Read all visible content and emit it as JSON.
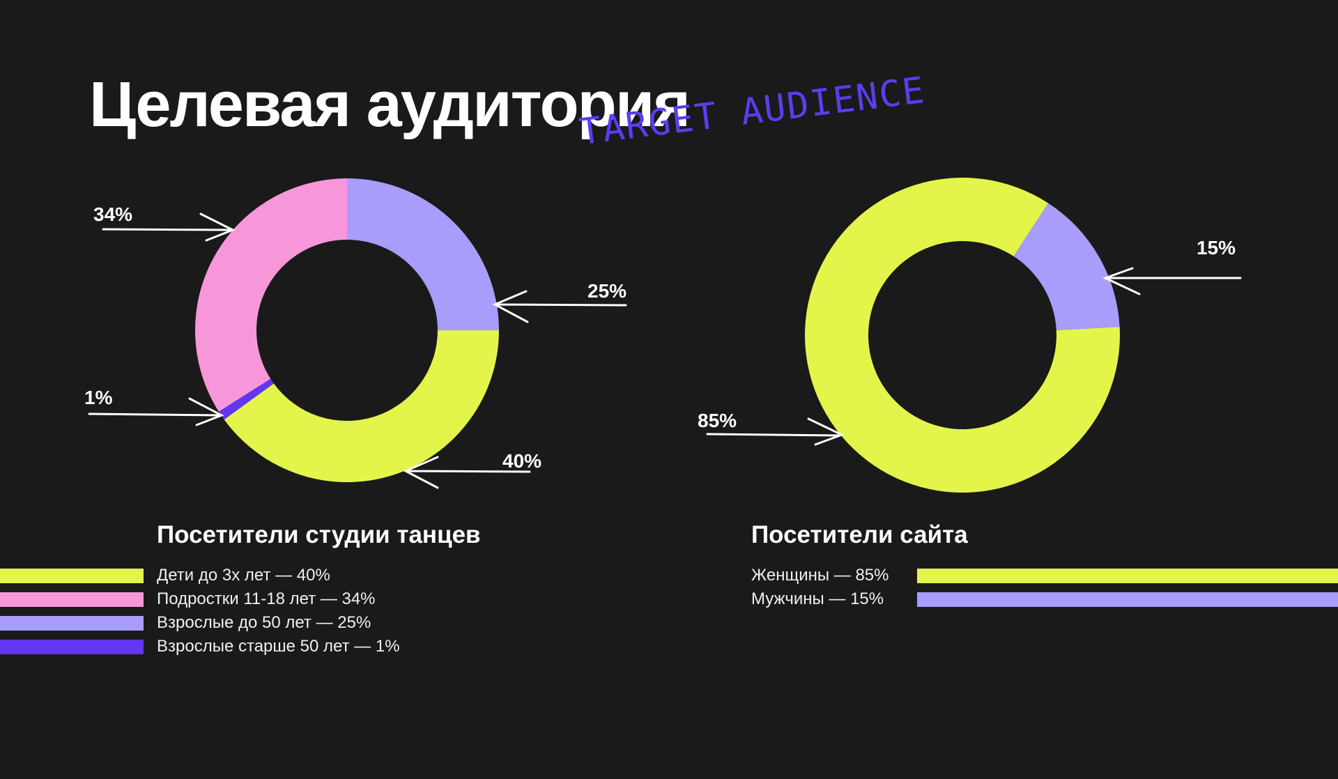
{
  "title": "Целевая аудитория",
  "scribble": "TARGET AUDIENCE",
  "colors": {
    "background": "#1a1a1a",
    "lime": "#e3f54a",
    "pink": "#f797d9",
    "lavender": "#a89dfb",
    "violet": "#6236f2",
    "accent_scribble": "#5b3df0"
  },
  "studio": {
    "title": "Посетители студии танцев",
    "labels": {
      "p40": "40%",
      "p34": "34%",
      "p25": "25%",
      "p1": "1%"
    },
    "legend": [
      {
        "text": "Дети до 3х лет — 40%",
        "color": "#e3f54a"
      },
      {
        "text": "Подростки 11-18 лет — 34%",
        "color": "#f797d9"
      },
      {
        "text": "Взрослые до 50 лет — 25%",
        "color": "#a89dfb"
      },
      {
        "text": "Взрослые старше 50 лет — 1%",
        "color": "#6236f2"
      }
    ]
  },
  "site": {
    "title": "Посетители сайта",
    "labels": {
      "p85": "85%",
      "p15": "15%"
    },
    "legend": [
      {
        "text": "Женщины — 85%",
        "color": "#e3f54a"
      },
      {
        "text": "Мужчины — 15%",
        "color": "#a89dfb"
      }
    ]
  },
  "chart_data": [
    {
      "type": "pie",
      "title": "Посетители студии танцев",
      "categories": [
        "Дети до 3х лет",
        "Подростки 11-18 лет",
        "Взрослые до 50 лет",
        "Взрослые старше 50 лет"
      ],
      "values": [
        40,
        34,
        25,
        1
      ],
      "colors": [
        "#e3f54a",
        "#f797d9",
        "#a89dfb",
        "#6236f2"
      ],
      "donut": true,
      "legend_position": "bottom"
    },
    {
      "type": "pie",
      "title": "Посетители сайта",
      "categories": [
        "Женщины",
        "Мужчины"
      ],
      "values": [
        85,
        15
      ],
      "colors": [
        "#e3f54a",
        "#a89dfb"
      ],
      "donut": true,
      "legend_position": "bottom"
    }
  ]
}
